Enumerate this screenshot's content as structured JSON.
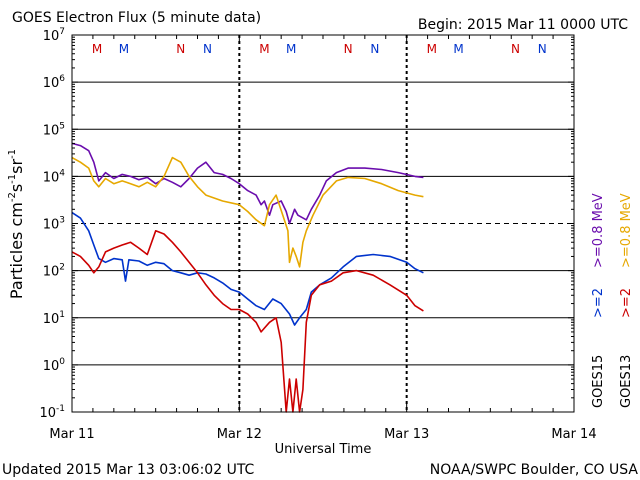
{
  "header": {
    "title": "GOES Electron Flux (5 minute data)",
    "begin": "Begin: 2015 Mar 11 0000 UTC"
  },
  "footer": {
    "updated": "Updated 2015 Mar 13 03:06:02 UTC",
    "credit": "NOAA/SWPC Boulder, CO USA"
  },
  "chart_data": {
    "type": "line",
    "title": "GOES Electron Flux (5 minute data)",
    "xlabel": "Universal Time",
    "ylabel_main": "Particles cm",
    "ylabel_sup1": "-2",
    "ylabel_mid1": "s",
    "ylabel_sup2": "-1",
    "ylabel_mid2": "sr",
    "ylabel_sup3": "-1",
    "yscale": "log",
    "ylim": [
      0.1,
      10000000
    ],
    "xlim": [
      0,
      3
    ],
    "x_unit": "days since 2015 Mar 11 0000 UTC",
    "x_ticks": [
      {
        "x": 0,
        "label": "Mar 11"
      },
      {
        "x": 1,
        "label": "Mar 12"
      },
      {
        "x": 2,
        "label": "Mar 13"
      },
      {
        "x": 3,
        "label": "Mar 14"
      }
    ],
    "y_ticks": [
      {
        "value": 0.1,
        "base": "10",
        "exp": "-1"
      },
      {
        "value": 1,
        "base": "10",
        "exp": "0"
      },
      {
        "value": 10,
        "base": "10",
        "exp": "1"
      },
      {
        "value": 100,
        "base": "10",
        "exp": "2"
      },
      {
        "value": 1000,
        "base": "10",
        "exp": "3"
      },
      {
        "value": 10000,
        "base": "10",
        "exp": "4"
      },
      {
        "value": 100000,
        "base": "10",
        "exp": "5"
      },
      {
        "value": 1000000,
        "base": "10",
        "exp": "6"
      },
      {
        "value": 10000000,
        "base": "10",
        "exp": "7"
      }
    ],
    "threshold_line": {
      "value": 1000,
      "style": "dashed"
    },
    "day_markers": [
      1,
      2
    ],
    "local_time_markers": {
      "colors": {
        "M": "#cc0000",
        "N": "#cc0000"
      },
      "items": [
        {
          "x": 0.15,
          "label": "M",
          "color": "#cc0000"
        },
        {
          "x": 0.31,
          "label": "M",
          "color": "#0033cc"
        },
        {
          "x": 0.65,
          "label": "N",
          "color": "#cc0000"
        },
        {
          "x": 0.81,
          "label": "N",
          "color": "#0033cc"
        },
        {
          "x": 1.15,
          "label": "M",
          "color": "#cc0000"
        },
        {
          "x": 1.31,
          "label": "M",
          "color": "#0033cc"
        },
        {
          "x": 1.65,
          "label": "N",
          "color": "#cc0000"
        },
        {
          "x": 1.81,
          "label": "N",
          "color": "#0033cc"
        },
        {
          "x": 2.15,
          "label": "M",
          "color": "#cc0000"
        },
        {
          "x": 2.31,
          "label": "M",
          "color": "#0033cc"
        },
        {
          "x": 2.65,
          "label": "N",
          "color": "#cc0000"
        },
        {
          "x": 2.81,
          "label": "N",
          "color": "#0033cc"
        }
      ]
    },
    "legend": {
      "placement": "right",
      "energy_entries": [
        {
          "text": ">=0.8  MeV",
          "color": "#6a0dad"
        },
        {
          "text": ">=0.8  MeV",
          "color": "#e6a800"
        },
        {
          "text": ">=2",
          "color": "#0033cc"
        },
        {
          "text": ">=2",
          "color": "#cc0000"
        }
      ],
      "satellites": [
        "GOES15",
        "GOES13"
      ]
    },
    "series": [
      {
        "name": "GOES15 >=0.8 MeV",
        "color": "#6a0dad",
        "points": [
          [
            0,
            50000
          ],
          [
            0.05,
            45000
          ],
          [
            0.1,
            35000
          ],
          [
            0.13,
            20000
          ],
          [
            0.16,
            8000
          ],
          [
            0.2,
            12000
          ],
          [
            0.25,
            9000
          ],
          [
            0.3,
            11000
          ],
          [
            0.35,
            10000
          ],
          [
            0.4,
            8500
          ],
          [
            0.45,
            9500
          ],
          [
            0.5,
            7000
          ],
          [
            0.55,
            9000
          ],
          [
            0.6,
            7500
          ],
          [
            0.65,
            6000
          ],
          [
            0.7,
            9000
          ],
          [
            0.75,
            15000
          ],
          [
            0.8,
            20000
          ],
          [
            0.85,
            12000
          ],
          [
            0.9,
            11000
          ],
          [
            0.95,
            9000
          ],
          [
            1.0,
            7000
          ],
          [
            1.05,
            5000
          ],
          [
            1.1,
            4000
          ],
          [
            1.13,
            2500
          ],
          [
            1.15,
            3000
          ],
          [
            1.18,
            1500
          ],
          [
            1.2,
            2500
          ],
          [
            1.25,
            3000
          ],
          [
            1.28,
            1800
          ],
          [
            1.3,
            1000
          ],
          [
            1.33,
            2000
          ],
          [
            1.35,
            1500
          ],
          [
            1.4,
            1200
          ],
          [
            1.43,
            2000
          ],
          [
            1.48,
            4000
          ],
          [
            1.52,
            8000
          ],
          [
            1.58,
            12000
          ],
          [
            1.65,
            15000
          ],
          [
            1.75,
            15000
          ],
          [
            1.85,
            14000
          ],
          [
            1.95,
            12000
          ],
          [
            2.05,
            10000
          ],
          [
            2.1,
            9500
          ]
        ]
      },
      {
        "name": "GOES13 >=0.8 MeV",
        "color": "#e6a800",
        "points": [
          [
            0,
            25000
          ],
          [
            0.05,
            20000
          ],
          [
            0.1,
            15000
          ],
          [
            0.13,
            8000
          ],
          [
            0.16,
            6000
          ],
          [
            0.2,
            9000
          ],
          [
            0.25,
            7000
          ],
          [
            0.3,
            8000
          ],
          [
            0.35,
            7000
          ],
          [
            0.4,
            6000
          ],
          [
            0.45,
            7500
          ],
          [
            0.5,
            6000
          ],
          [
            0.55,
            10000
          ],
          [
            0.6,
            25000
          ],
          [
            0.65,
            20000
          ],
          [
            0.7,
            10000
          ],
          [
            0.75,
            6000
          ],
          [
            0.8,
            4000
          ],
          [
            0.9,
            3000
          ],
          [
            1.0,
            2500
          ],
          [
            1.05,
            1800
          ],
          [
            1.1,
            1200
          ],
          [
            1.15,
            900
          ],
          [
            1.18,
            2500
          ],
          [
            1.22,
            4000
          ],
          [
            1.26,
            1500
          ],
          [
            1.29,
            700
          ],
          [
            1.3,
            150
          ],
          [
            1.32,
            300
          ],
          [
            1.34,
            200
          ],
          [
            1.36,
            120
          ],
          [
            1.38,
            400
          ],
          [
            1.4,
            700
          ],
          [
            1.44,
            1500
          ],
          [
            1.5,
            4000
          ],
          [
            1.58,
            8000
          ],
          [
            1.65,
            9500
          ],
          [
            1.75,
            9000
          ],
          [
            1.85,
            7000
          ],
          [
            1.95,
            5000
          ],
          [
            2.05,
            4000
          ],
          [
            2.1,
            3700
          ]
        ]
      },
      {
        "name": "GOES15 >=2 MeV",
        "color": "#0033cc",
        "points": [
          [
            0,
            1700
          ],
          [
            0.05,
            1300
          ],
          [
            0.1,
            700
          ],
          [
            0.13,
            350
          ],
          [
            0.16,
            180
          ],
          [
            0.2,
            150
          ],
          [
            0.25,
            180
          ],
          [
            0.3,
            170
          ],
          [
            0.32,
            60
          ],
          [
            0.34,
            170
          ],
          [
            0.4,
            160
          ],
          [
            0.45,
            130
          ],
          [
            0.5,
            150
          ],
          [
            0.55,
            140
          ],
          [
            0.6,
            100
          ],
          [
            0.65,
            90
          ],
          [
            0.7,
            80
          ],
          [
            0.75,
            90
          ],
          [
            0.8,
            85
          ],
          [
            0.85,
            70
          ],
          [
            0.9,
            55
          ],
          [
            0.95,
            40
          ],
          [
            1.0,
            35
          ],
          [
            1.05,
            25
          ],
          [
            1.1,
            18
          ],
          [
            1.15,
            15
          ],
          [
            1.2,
            25
          ],
          [
            1.25,
            20
          ],
          [
            1.3,
            12
          ],
          [
            1.33,
            7
          ],
          [
            1.36,
            10
          ],
          [
            1.4,
            15
          ],
          [
            1.43,
            35
          ],
          [
            1.48,
            50
          ],
          [
            1.55,
            70
          ],
          [
            1.62,
            120
          ],
          [
            1.7,
            200
          ],
          [
            1.8,
            220
          ],
          [
            1.9,
            200
          ],
          [
            2.0,
            150
          ],
          [
            2.05,
            110
          ],
          [
            2.1,
            90
          ]
        ]
      },
      {
        "name": "GOES13 >=2 MeV",
        "color": "#cc0000",
        "points": [
          [
            0,
            250
          ],
          [
            0.05,
            200
          ],
          [
            0.1,
            130
          ],
          [
            0.13,
            90
          ],
          [
            0.16,
            120
          ],
          [
            0.2,
            250
          ],
          [
            0.25,
            300
          ],
          [
            0.3,
            350
          ],
          [
            0.35,
            400
          ],
          [
            0.4,
            300
          ],
          [
            0.45,
            220
          ],
          [
            0.5,
            700
          ],
          [
            0.55,
            600
          ],
          [
            0.6,
            400
          ],
          [
            0.65,
            250
          ],
          [
            0.7,
            150
          ],
          [
            0.75,
            90
          ],
          [
            0.8,
            50
          ],
          [
            0.85,
            30
          ],
          [
            0.9,
            20
          ],
          [
            0.95,
            15
          ],
          [
            1.0,
            15
          ],
          [
            1.05,
            12
          ],
          [
            1.1,
            8
          ],
          [
            1.13,
            5
          ],
          [
            1.18,
            8
          ],
          [
            1.22,
            10
          ],
          [
            1.25,
            3
          ],
          [
            1.28,
            0.1
          ],
          [
            1.3,
            0.5
          ],
          [
            1.32,
            0.1
          ],
          [
            1.34,
            0.5
          ],
          [
            1.36,
            0.1
          ],
          [
            1.38,
            0.3
          ],
          [
            1.4,
            8
          ],
          [
            1.43,
            30
          ],
          [
            1.48,
            50
          ],
          [
            1.55,
            60
          ],
          [
            1.62,
            90
          ],
          [
            1.7,
            100
          ],
          [
            1.8,
            80
          ],
          [
            1.9,
            50
          ],
          [
            2.0,
            30
          ],
          [
            2.05,
            18
          ],
          [
            2.1,
            14
          ]
        ]
      }
    ]
  }
}
